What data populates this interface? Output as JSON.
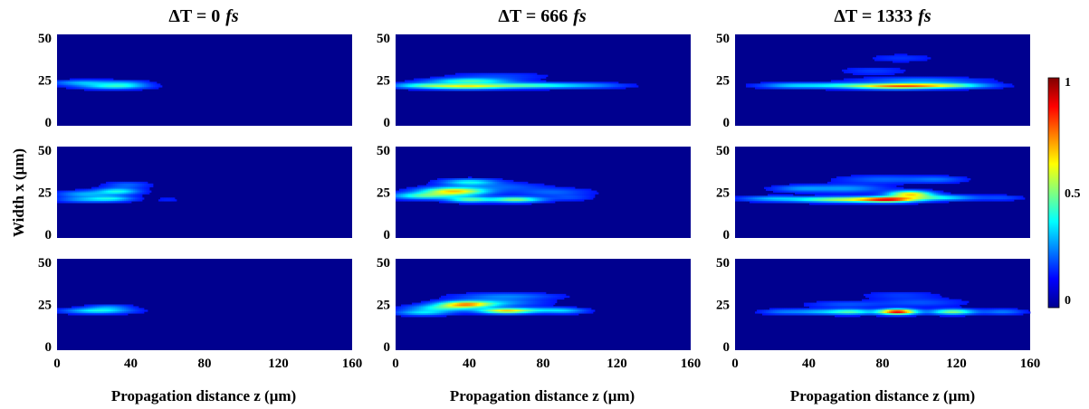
{
  "chart_data": {
    "type": "heatmap",
    "layout": "3x3 grid of heatmaps with a shared colorbar",
    "columns": [
      {
        "title_prefix": "ΔT = ",
        "title_value": "0",
        "title_unit": "fs"
      },
      {
        "title_prefix": "ΔT = ",
        "title_value": "666",
        "title_unit": "fs"
      },
      {
        "title_prefix": "ΔT = ",
        "title_value": "1333",
        "title_unit": "fs"
      }
    ],
    "xlabel": "Propagation distance z (μm)",
    "ylabel": "Width x (μm)",
    "xlim": [
      0,
      160
    ],
    "ylim": [
      0,
      50
    ],
    "xticks": [
      "0",
      "40",
      "80",
      "120",
      "160"
    ],
    "yticks": [
      "0",
      "25",
      "50"
    ],
    "colorbar": {
      "colormap": "jet",
      "range": [
        0,
        1
      ],
      "ticks": [
        "0",
        "0.5",
        "1"
      ]
    },
    "background_color": "#00008f",
    "panels": [
      {
        "row": 0,
        "col": 0,
        "blobs": [
          {
            "z": 15,
            "x": 23.5,
            "sz": 12,
            "sx": 1.0,
            "a": 0.22
          },
          {
            "z": 30,
            "x": 21.5,
            "sz": 12,
            "sx": 1.0,
            "a": 0.28
          },
          {
            "z": 38,
            "x": 23,
            "sz": 8,
            "sx": 1.2,
            "a": 0.15
          }
        ]
      },
      {
        "row": 0,
        "col": 1,
        "blobs": [
          {
            "z": 15,
            "x": 22,
            "sz": 12,
            "sx": 1.0,
            "a": 0.3
          },
          {
            "z": 38,
            "x": 21.5,
            "sz": 14,
            "sx": 1.0,
            "a": 0.45
          },
          {
            "z": 40,
            "x": 24.5,
            "sz": 14,
            "sx": 1.0,
            "a": 0.35
          },
          {
            "z": 65,
            "x": 22,
            "sz": 18,
            "sx": 1.0,
            "a": 0.3
          },
          {
            "z": 90,
            "x": 22,
            "sz": 18,
            "sx": 1.0,
            "a": 0.16
          },
          {
            "z": 55,
            "x": 27,
            "sz": 18,
            "sx": 1.5,
            "a": 0.08
          },
          {
            "z": 110,
            "x": 22,
            "sz": 12,
            "sx": 1.0,
            "a": 0.07
          }
        ]
      },
      {
        "row": 0,
        "col": 2,
        "blobs": [
          {
            "z": 30,
            "x": 22,
            "sz": 12,
            "sx": 1.0,
            "a": 0.2
          },
          {
            "z": 60,
            "x": 22,
            "sz": 16,
            "sx": 1.0,
            "a": 0.3
          },
          {
            "z": 85,
            "x": 21.5,
            "sz": 14,
            "sx": 1.0,
            "a": 0.45
          },
          {
            "z": 100,
            "x": 22,
            "sz": 14,
            "sx": 1.0,
            "a": 0.4
          },
          {
            "z": 120,
            "x": 22,
            "sz": 14,
            "sx": 1.0,
            "a": 0.3
          },
          {
            "z": 100,
            "x": 25,
            "sz": 22,
            "sx": 1.0,
            "a": 0.15
          },
          {
            "z": 75,
            "x": 30,
            "sz": 12,
            "sx": 1.5,
            "a": 0.07
          },
          {
            "z": 90,
            "x": 37,
            "sz": 12,
            "sx": 1.5,
            "a": 0.06
          }
        ]
      },
      {
        "row": 1,
        "col": 0,
        "blobs": [
          {
            "z": 15,
            "x": 24,
            "sz": 10,
            "sx": 1.2,
            "a": 0.2
          },
          {
            "z": 15,
            "x": 21,
            "sz": 10,
            "sx": 1.0,
            "a": 0.18
          },
          {
            "z": 33,
            "x": 25.5,
            "sz": 8,
            "sx": 1.2,
            "a": 0.3
          },
          {
            "z": 30,
            "x": 21.5,
            "sz": 8,
            "sx": 1.0,
            "a": 0.25
          },
          {
            "z": 38,
            "x": 29,
            "sz": 8,
            "sx": 1.2,
            "a": 0.12
          },
          {
            "z": 60,
            "x": 21,
            "sz": 5,
            "sx": 1.0,
            "a": 0.04
          }
        ]
      },
      {
        "row": 1,
        "col": 1,
        "blobs": [
          {
            "z": 15,
            "x": 23,
            "sz": 12,
            "sx": 1.2,
            "a": 0.35
          },
          {
            "z": 32,
            "x": 25.5,
            "sz": 12,
            "sx": 1.5,
            "a": 0.62
          },
          {
            "z": 40,
            "x": 21,
            "sz": 8,
            "sx": 1.0,
            "a": 0.38
          },
          {
            "z": 40,
            "x": 30.5,
            "sz": 10,
            "sx": 1.2,
            "a": 0.3
          },
          {
            "z": 65,
            "x": 21,
            "sz": 10,
            "sx": 1.0,
            "a": 0.45
          },
          {
            "z": 60,
            "x": 28,
            "sz": 14,
            "sx": 1.5,
            "a": 0.1
          },
          {
            "z": 85,
            "x": 25,
            "sz": 14,
            "sx": 1.5,
            "a": 0.12
          },
          {
            "z": 95,
            "x": 22,
            "sz": 8,
            "sx": 1.0,
            "a": 0.08
          }
        ]
      },
      {
        "row": 1,
        "col": 2,
        "blobs": [
          {
            "z": 20,
            "x": 21.5,
            "sz": 12,
            "sx": 1.0,
            "a": 0.2
          },
          {
            "z": 50,
            "x": 21,
            "sz": 14,
            "sx": 1.0,
            "a": 0.35
          },
          {
            "z": 75,
            "x": 21,
            "sz": 14,
            "sx": 1.0,
            "a": 0.45
          },
          {
            "z": 85,
            "x": 21,
            "sz": 10,
            "sx": 1.0,
            "a": 0.5
          },
          {
            "z": 95,
            "x": 24,
            "sz": 8,
            "sx": 1.2,
            "a": 0.6
          },
          {
            "z": 110,
            "x": 22,
            "sz": 14,
            "sx": 1.0,
            "a": 0.3
          },
          {
            "z": 60,
            "x": 27,
            "sz": 14,
            "sx": 1.5,
            "a": 0.18
          },
          {
            "z": 35,
            "x": 27,
            "sz": 10,
            "sx": 1.2,
            "a": 0.15
          },
          {
            "z": 80,
            "x": 32,
            "sz": 16,
            "sx": 1.5,
            "a": 0.12
          },
          {
            "z": 110,
            "x": 32,
            "sz": 10,
            "sx": 1.2,
            "a": 0.12
          },
          {
            "z": 145,
            "x": 22,
            "sz": 8,
            "sx": 1.0,
            "a": 0.08
          }
        ]
      },
      {
        "row": 2,
        "col": 0,
        "blobs": [
          {
            "z": 22,
            "x": 21.5,
            "sz": 12,
            "sx": 1.0,
            "a": 0.3
          },
          {
            "z": 28,
            "x": 23.5,
            "sz": 8,
            "sx": 1.0,
            "a": 0.15
          }
        ]
      },
      {
        "row": 2,
        "col": 1,
        "blobs": [
          {
            "z": 15,
            "x": 20.5,
            "sz": 10,
            "sx": 1.0,
            "a": 0.25
          },
          {
            "z": 25,
            "x": 23,
            "sz": 12,
            "sx": 1.2,
            "a": 0.3
          },
          {
            "z": 38,
            "x": 25,
            "sz": 10,
            "sx": 1.2,
            "a": 0.62
          },
          {
            "z": 60,
            "x": 21.5,
            "sz": 10,
            "sx": 1.0,
            "a": 0.6
          },
          {
            "z": 55,
            "x": 26,
            "sz": 16,
            "sx": 1.5,
            "a": 0.18
          },
          {
            "z": 60,
            "x": 29.5,
            "sz": 18,
            "sx": 1.2,
            "a": 0.15
          },
          {
            "z": 80,
            "x": 22,
            "sz": 10,
            "sx": 1.0,
            "a": 0.15
          },
          {
            "z": 92,
            "x": 21.5,
            "sz": 8,
            "sx": 1.0,
            "a": 0.18
          }
        ]
      },
      {
        "row": 2,
        "col": 2,
        "blobs": [
          {
            "z": 25,
            "x": 21,
            "sz": 8,
            "sx": 1.0,
            "a": 0.12
          },
          {
            "z": 45,
            "x": 21,
            "sz": 10,
            "sx": 1.0,
            "a": 0.2
          },
          {
            "z": 63,
            "x": 21,
            "sz": 8,
            "sx": 1.0,
            "a": 0.35
          },
          {
            "z": 88,
            "x": 21,
            "sz": 7,
            "sx": 1.0,
            "a": 0.9
          },
          {
            "z": 118,
            "x": 21,
            "sz": 8,
            "sx": 1.0,
            "a": 0.45
          },
          {
            "z": 145,
            "x": 21,
            "sz": 8,
            "sx": 1.0,
            "a": 0.15
          },
          {
            "z": 60,
            "x": 25,
            "sz": 14,
            "sx": 1.2,
            "a": 0.1
          },
          {
            "z": 100,
            "x": 26,
            "sz": 16,
            "sx": 1.5,
            "a": 0.1
          },
          {
            "z": 90,
            "x": 30,
            "sz": 14,
            "sx": 1.5,
            "a": 0.07
          }
        ]
      }
    ]
  }
}
